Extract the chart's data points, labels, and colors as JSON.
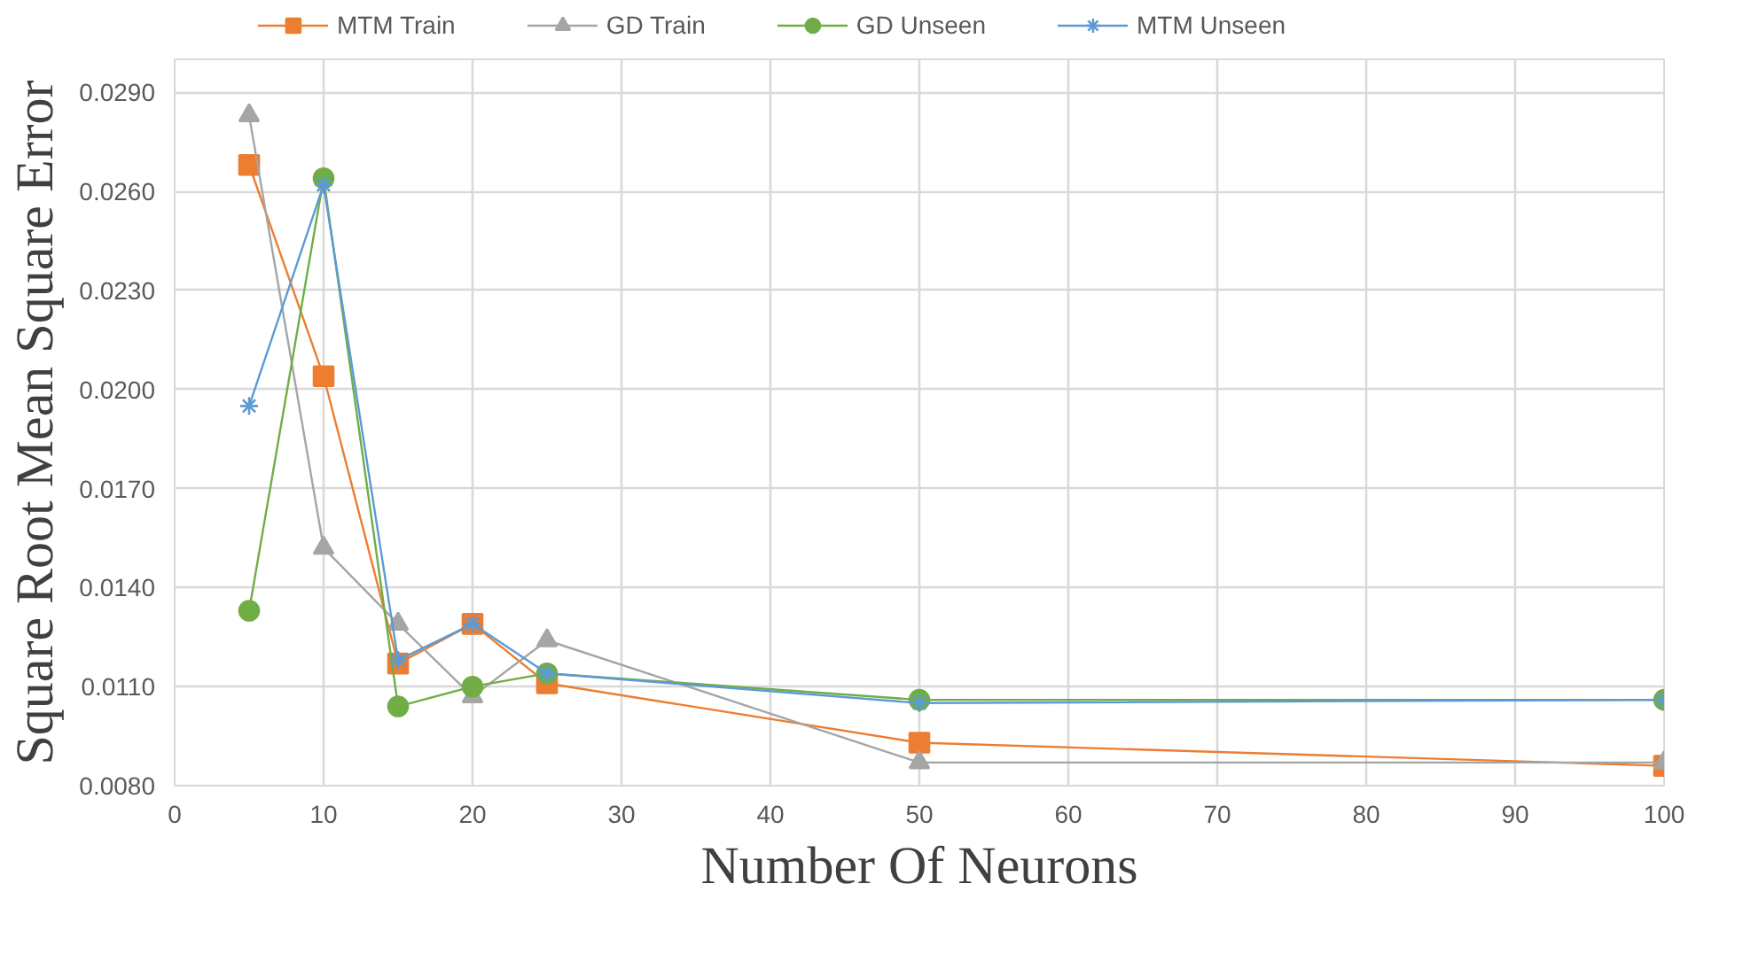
{
  "chart_data": {
    "type": "line",
    "xlabel": "Number Of Neurons",
    "ylabel": "Square Root Mean Square Error",
    "x": [
      5,
      10,
      15,
      20,
      25,
      50,
      100
    ],
    "series": [
      {
        "name": "MTM Train",
        "color": "#ed7d31",
        "marker": "square",
        "values": [
          0.0268,
          0.0204,
          0.0117,
          0.0129,
          0.0111,
          0.0093,
          0.0086
        ]
      },
      {
        "name": "GD Train",
        "color": "#a5a5a5",
        "marker": "triangle",
        "values": [
          0.0283,
          0.0152,
          0.0129,
          0.0107,
          0.0124,
          0.0087,
          0.0087
        ]
      },
      {
        "name": "GD Unseen",
        "color": "#70ad47",
        "marker": "circle",
        "values": [
          0.0133,
          0.0264,
          0.0104,
          0.011,
          0.0114,
          0.0106,
          0.0106
        ]
      },
      {
        "name": "MTM Unseen",
        "color": "#5b9bd5",
        "marker": "cross",
        "values": [
          0.0195,
          0.0262,
          0.0118,
          0.0129,
          0.0114,
          0.0105,
          0.0106
        ]
      }
    ],
    "xlim": [
      0,
      100
    ],
    "xticks": [
      0,
      10,
      20,
      30,
      40,
      50,
      60,
      70,
      80,
      90,
      100
    ],
    "ylim": [
      0.008,
      0.03
    ],
    "yticks": [
      {
        "value": 0.008,
        "label": "0.0080"
      },
      {
        "value": 0.011,
        "label": "0.0110"
      },
      {
        "value": 0.014,
        "label": "0.0140"
      },
      {
        "value": 0.017,
        "label": "0.0170"
      },
      {
        "value": 0.02,
        "label": "0.0200"
      },
      {
        "value": 0.023,
        "label": "0.0230"
      },
      {
        "value": 0.026,
        "label": "0.0260"
      },
      {
        "value": 0.029,
        "label": "0.0290"
      }
    ],
    "grid": true,
    "legend": "top",
    "line_style": "solid"
  }
}
